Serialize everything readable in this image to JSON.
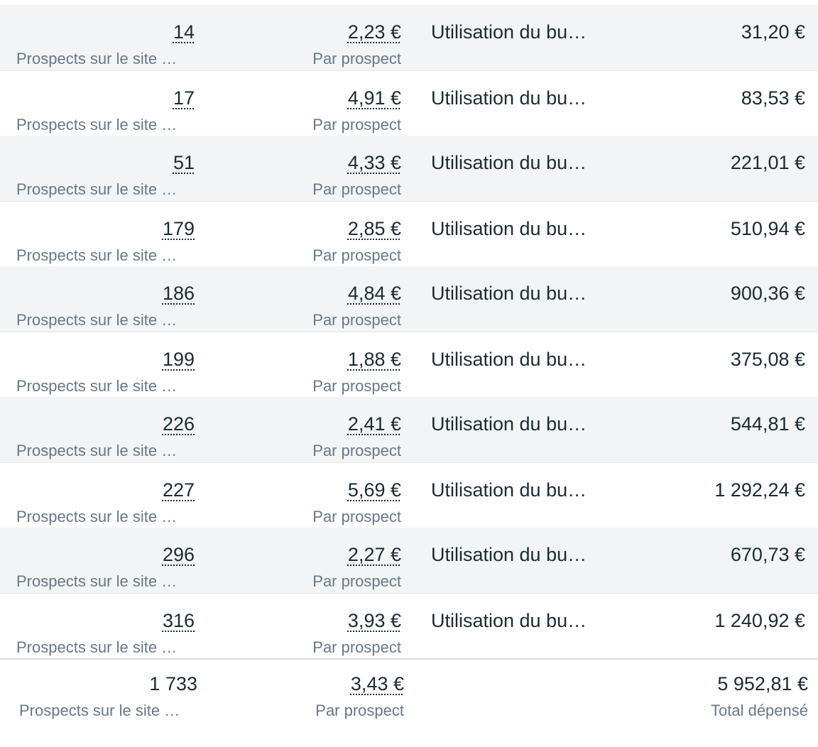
{
  "rows": [
    {
      "results": "14",
      "results_label": "Prospects sur le site …",
      "cost": "2,23 €",
      "cost_label": "Par prospect",
      "budget": "Utilisation du bu…",
      "spent": "31,20 €"
    },
    {
      "results": "17",
      "results_label": "Prospects sur le site …",
      "cost": "4,91 €",
      "cost_label": "Par prospect",
      "budget": "Utilisation du bu…",
      "spent": "83,53 €"
    },
    {
      "results": "51",
      "results_label": "Prospects sur le site …",
      "cost": "4,33 €",
      "cost_label": "Par prospect",
      "budget": "Utilisation du bu…",
      "spent": "221,01 €"
    },
    {
      "results": "179",
      "results_label": "Prospects sur le site …",
      "cost": "2,85 €",
      "cost_label": "Par prospect",
      "budget": "Utilisation du bu…",
      "spent": "510,94 €"
    },
    {
      "results": "186",
      "results_label": "Prospects sur le site …",
      "cost": "4,84 €",
      "cost_label": "Par prospect",
      "budget": "Utilisation du bu…",
      "spent": "900,36 €"
    },
    {
      "results": "199",
      "results_label": "Prospects sur le site …",
      "cost": "1,88 €",
      "cost_label": "Par prospect",
      "budget": "Utilisation du bu…",
      "spent": "375,08 €"
    },
    {
      "results": "226",
      "results_label": "Prospects sur le site …",
      "cost": "2,41 €",
      "cost_label": "Par prospect",
      "budget": "Utilisation du bu…",
      "spent": "544,81 €"
    },
    {
      "results": "227",
      "results_label": "Prospects sur le site …",
      "cost": "5,69 €",
      "cost_label": "Par prospect",
      "budget": "Utilisation du bu…",
      "spent": "1 292,24 €"
    },
    {
      "results": "296",
      "results_label": "Prospects sur le site …",
      "cost": "2,27 €",
      "cost_label": "Par prospect",
      "budget": "Utilisation du bu…",
      "spent": "670,73 €"
    },
    {
      "results": "316",
      "results_label": "Prospects sur le site …",
      "cost": "3,93 €",
      "cost_label": "Par prospect",
      "budget": "Utilisation du bu…",
      "spent": "1 240,92 €"
    }
  ],
  "total": {
    "results": "1 733",
    "results_label": "Prospects sur le site …",
    "cost": "3,43 €",
    "cost_label": "Par prospect",
    "spent": "5 952,81 €",
    "spent_label": "Total dépensé"
  }
}
